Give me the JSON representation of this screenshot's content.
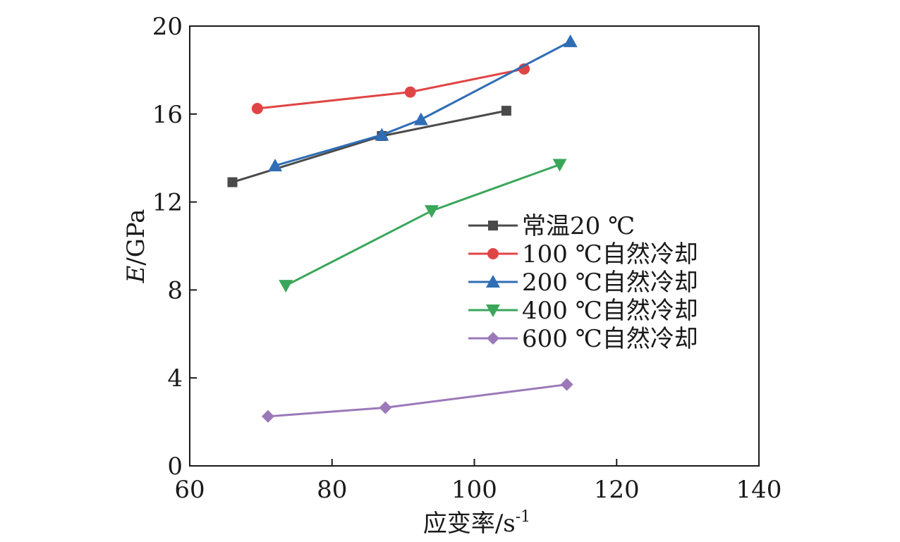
{
  "chart_data": {
    "type": "line",
    "xlabel": "应变率/s",
    "xlabel_sup": "-1",
    "ylabel_italic": "E",
    "ylabel_rest": "/GPa",
    "xlim": [
      60,
      140
    ],
    "ylim": [
      0,
      20
    ],
    "xticks": [
      60,
      80,
      100,
      120,
      140
    ],
    "yticks": [
      0,
      4,
      8,
      12,
      16,
      20
    ],
    "grid": false,
    "legend_position": "center-right",
    "series": [
      {
        "name": "常温20 ℃",
        "color": "#4a4a4a",
        "marker": "square",
        "x": [
          66,
          87,
          104.5
        ],
        "y": [
          12.9,
          15.0,
          16.15
        ]
      },
      {
        "name": "100 ℃自然冷却",
        "color": "#e04545",
        "marker": "circle",
        "x": [
          69.5,
          91,
          107
        ],
        "y": [
          16.25,
          17.0,
          18.05
        ]
      },
      {
        "name": "200 ℃自然冷却",
        "color": "#2f6db5",
        "marker": "triangle-up",
        "x": [
          72,
          87,
          92.5,
          113.5
        ],
        "y": [
          13.65,
          15.05,
          15.75,
          19.3
        ]
      },
      {
        "name": "400 ℃自然冷却",
        "color": "#3aa65a",
        "marker": "triangle-down",
        "x": [
          73.5,
          94,
          112
        ],
        "y": [
          8.2,
          11.6,
          13.7
        ]
      },
      {
        "name": "600 ℃自然冷却",
        "color": "#9b79b9",
        "marker": "diamond",
        "x": [
          71,
          87.5,
          113
        ],
        "y": [
          2.25,
          2.65,
          3.7
        ]
      }
    ]
  }
}
